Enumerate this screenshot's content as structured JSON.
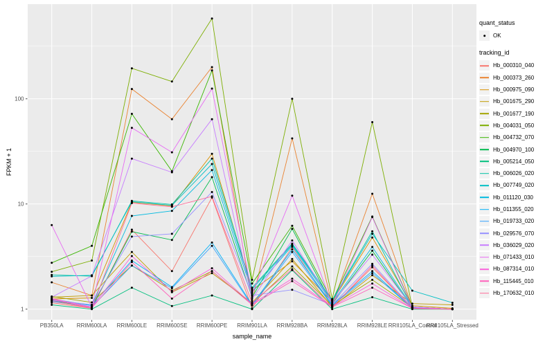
{
  "figure": {
    "panel_bg": "#EBEBEB",
    "grid_color": "#FFFFFF",
    "key_bg": "#F2F2F2",
    "axis_text_color": "#4D4D4D",
    "tick_color": "#333333",
    "point_color": "#000000",
    "y_axis": {
      "title": "FPKM + 1",
      "tick_labels": [
        "100",
        "10",
        "1"
      ],
      "tick_values": [
        100,
        10,
        1
      ],
      "minor_values": [
        316.2,
        31.62,
        3.162
      ]
    },
    "x_axis": {
      "title": "sample_name"
    },
    "legend": {
      "quant_status_title": "quant_status",
      "quant_status_items": [
        {
          "label": "OK",
          "symbol": "point"
        }
      ],
      "tracking_id_title": "tracking_id"
    }
  },
  "chart_data": {
    "type": "line",
    "title": "",
    "xlabel": "sample_name",
    "ylabel": "FPKM + 1",
    "yscale": "log10",
    "ylim": [
      0.794,
      794
    ],
    "grid": true,
    "legend_position": "right",
    "x_categories": [
      "PB350LA",
      "RRIM600LA",
      "RRIM600LE",
      "RRIM600SE",
      "RRIM600PE",
      "RRIM901LA",
      "RRIM928BA",
      "RRIM928LA",
      "RRIM928LE",
      "RRII105LA_Control",
      "RRII105LA_Stressed"
    ],
    "series": [
      {
        "name": "Hb_000310_040",
        "color": "#F8766D",
        "values": [
          1.15,
          1.02,
          5.7,
          2.3,
          11.5,
          1.02,
          3.9,
          1.05,
          2.5,
          1.02,
          1.0
        ]
      },
      {
        "name": "Hb_000373_260",
        "color": "#EA8331",
        "values": [
          1.8,
          1.35,
          124,
          64,
          200,
          1.2,
          42,
          1.1,
          12.5,
          1.05,
          1.0
        ]
      },
      {
        "name": "Hb_000975_090",
        "color": "#D89000",
        "values": [
          1.25,
          1.28,
          10.4,
          9.6,
          30,
          1.5,
          2.85,
          1.18,
          4.8,
          1.08,
          1.02
        ]
      },
      {
        "name": "Hb_001675_290",
        "color": "#C09B00",
        "values": [
          1.3,
          1.35,
          3.5,
          1.45,
          2.2,
          1.15,
          3.0,
          1.05,
          2.1,
          1.13,
          1.1
        ]
      },
      {
        "name": "Hb_001677_190",
        "color": "#A3A500",
        "values": [
          1.32,
          1.16,
          2.6,
          1.5,
          2.3,
          1.12,
          2.55,
          1.08,
          1.9,
          1.04,
          1.0
        ]
      },
      {
        "name": "Hb_004031_050",
        "color": "#7CAE00",
        "values": [
          2.27,
          2.9,
          195,
          146,
          580,
          1.9,
          100,
          1.25,
          60,
          1.05,
          1.0
        ]
      },
      {
        "name": "Hb_004732_070",
        "color": "#39B600",
        "values": [
          2.76,
          4.0,
          72,
          20.5,
          186,
          1.75,
          6.2,
          1.2,
          7.6,
          1.05,
          1.0
        ]
      },
      {
        "name": "Hb_004970_100",
        "color": "#00BB4E",
        "values": [
          1.2,
          1.05,
          5.45,
          4.55,
          18,
          1.3,
          5.8,
          1.12,
          3.6,
          1.03,
          1.0
        ]
      },
      {
        "name": "Hb_005214_050",
        "color": "#00BF7D",
        "values": [
          1.1,
          1.0,
          1.6,
          1.07,
          1.35,
          1.0,
          2.35,
          1.0,
          1.3,
          1.0,
          1.0
        ]
      },
      {
        "name": "Hb_006026_020",
        "color": "#00C1A3",
        "values": [
          2.12,
          2.06,
          10.7,
          9.9,
          27,
          1.6,
          4.2,
          1.22,
          5.5,
          1.04,
          1.0
        ]
      },
      {
        "name": "Hb_007749_020",
        "color": "#00BFC4",
        "values": [
          2.05,
          2.1,
          10.5,
          9.7,
          24,
          1.55,
          4.1,
          1.2,
          5.2,
          1.5,
          1.15
        ]
      },
      {
        "name": "Hb_011120_030",
        "color": "#00BAE0",
        "values": [
          1.2,
          1.1,
          7.7,
          8.6,
          21,
          1.45,
          4.0,
          1.15,
          3.9,
          1.05,
          1.0
        ]
      },
      {
        "name": "Hb_011355_020",
        "color": "#00B0F6",
        "values": [
          1.25,
          1.08,
          2.9,
          1.62,
          4.3,
          1.1,
          3.7,
          1.1,
          2.3,
          1.02,
          1.0
        ]
      },
      {
        "name": "Hb_019733_020",
        "color": "#35A2FF",
        "values": [
          1.18,
          1.05,
          2.6,
          1.58,
          4.0,
          1.08,
          3.5,
          1.08,
          2.2,
          1.02,
          1.0
        ]
      },
      {
        "name": "Hb_029576_070",
        "color": "#9590FF",
        "values": [
          1.22,
          1.1,
          4.9,
          5.2,
          13,
          1.35,
          1.53,
          1.1,
          2.7,
          1.03,
          1.0
        ]
      },
      {
        "name": "Hb_036029_020",
        "color": "#C77CFF",
        "values": [
          1.3,
          2.07,
          27,
          20,
          64,
          1.25,
          4.5,
          1.15,
          3.3,
          1.05,
          1.0
        ]
      },
      {
        "name": "Hb_071433_010",
        "color": "#E76BF3",
        "values": [
          6.3,
          1.05,
          53,
          31,
          125,
          1.4,
          12,
          1.1,
          7.5,
          1.03,
          1.0
        ]
      },
      {
        "name": "Hb_087314_010",
        "color": "#FA62DB",
        "values": [
          1.26,
          1.05,
          3.2,
          1.46,
          2.45,
          1.12,
          1.95,
          1.06,
          1.75,
          1.02,
          1.0
        ]
      },
      {
        "name": "Hb_115445_010",
        "color": "#FF62BC",
        "values": [
          1.24,
          1.03,
          2.8,
          1.26,
          2.3,
          1.1,
          1.85,
          1.05,
          1.6,
          1.02,
          1.0
        ]
      },
      {
        "name": "Hb_170632_010",
        "color": "#FF6A98",
        "values": [
          1.2,
          1.02,
          10.2,
          9.4,
          11.8,
          1.15,
          2.4,
          1.04,
          2.6,
          1.01,
          1.0
        ]
      }
    ]
  }
}
